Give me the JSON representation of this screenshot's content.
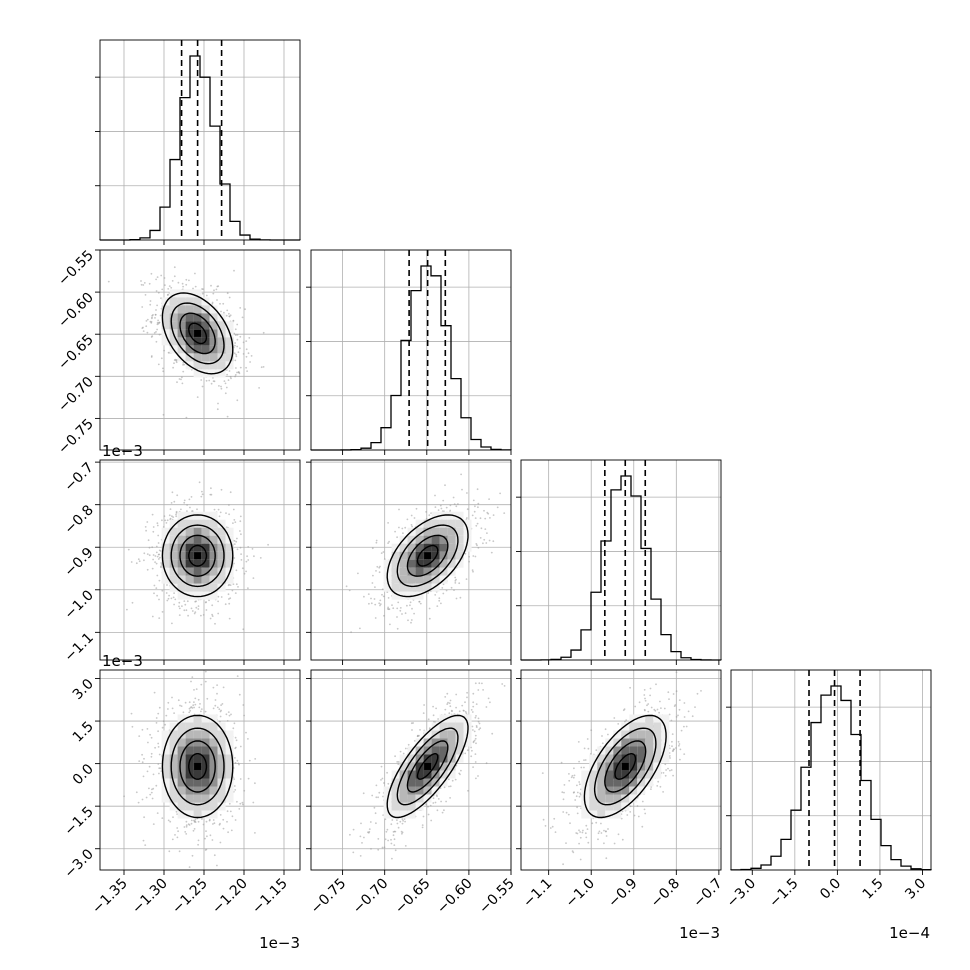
{
  "chart_data": {
    "type": "corner",
    "grid": true,
    "parameters": [
      {
        "index": 0,
        "range": [
          -1.38,
          -1.13
        ],
        "ticks": [
          -1.35,
          -1.3,
          -1.25,
          -1.2,
          -1.15
        ],
        "tick_labels": [
          "−1.35",
          "−1.30",
          "−1.25",
          "−1.20",
          "−1.15"
        ],
        "scale_label": "1e−3",
        "center": -1.258,
        "sigma": 0.022,
        "quantiles": [
          -1.278,
          -1.258,
          -1.228
        ]
      },
      {
        "index": 1,
        "range": [
          -0.7875,
          -0.55
        ],
        "ticks": [
          -0.75,
          -0.7,
          -0.65,
          -0.6,
          -0.55
        ],
        "tick_labels": [
          "−0.75",
          "−0.70",
          "−0.65",
          "−0.60",
          "−0.55"
        ],
        "scale_label": "1e−3",
        "center": -0.649,
        "sigma": 0.024,
        "quantiles": [
          -0.671,
          -0.649,
          -0.628
        ]
      },
      {
        "index": 2,
        "range": [
          -1.165,
          -0.695
        ],
        "ticks": [
          -1.1,
          -1.0,
          -0.9,
          -0.8,
          -0.7
        ],
        "tick_labels": [
          "−1.1",
          "−1.0",
          "−0.9",
          "−0.8",
          "−0.7"
        ],
        "scale_label": "1e−3",
        "center": -0.92,
        "sigma": 0.048,
        "quantiles": [
          -0.968,
          -0.92,
          -0.873
        ]
      },
      {
        "index": 3,
        "range": [
          -3.75,
          3.3
        ],
        "ticks": [
          -3.0,
          -1.5,
          0.0,
          1.5,
          3.0
        ],
        "tick_labels": [
          "−3.0",
          "−1.5",
          "0.0",
          "1.5",
          "3.0"
        ],
        "scale_label": "1e−4",
        "center": -0.1,
        "sigma": 0.9,
        "quantiles": [
          -1.0,
          -0.1,
          0.8
        ]
      }
    ],
    "correlations": {
      "1-0": -0.4,
      "2-0": 0.0,
      "2-1": 0.5,
      "3-0": 0.0,
      "3-1": 0.75,
      "3-2": 0.6
    },
    "histograms": [
      {
        "ymax_frac": 0.92,
        "bins": 20
      },
      {
        "ymax_frac": 0.92,
        "bins": 20
      },
      {
        "ymax_frac": 0.92,
        "bins": 20
      },
      {
        "ymax_frac": 0.92,
        "bins": 20
      }
    ],
    "density_levels": [
      "outer",
      "middle",
      "inner",
      "core"
    ],
    "colors": {
      "line": "#000000",
      "grid": "#b0b0b0",
      "points": "#9a9a9a",
      "shade_min": "#f2f2f2",
      "shade_max": "#3a3a3a"
    }
  }
}
